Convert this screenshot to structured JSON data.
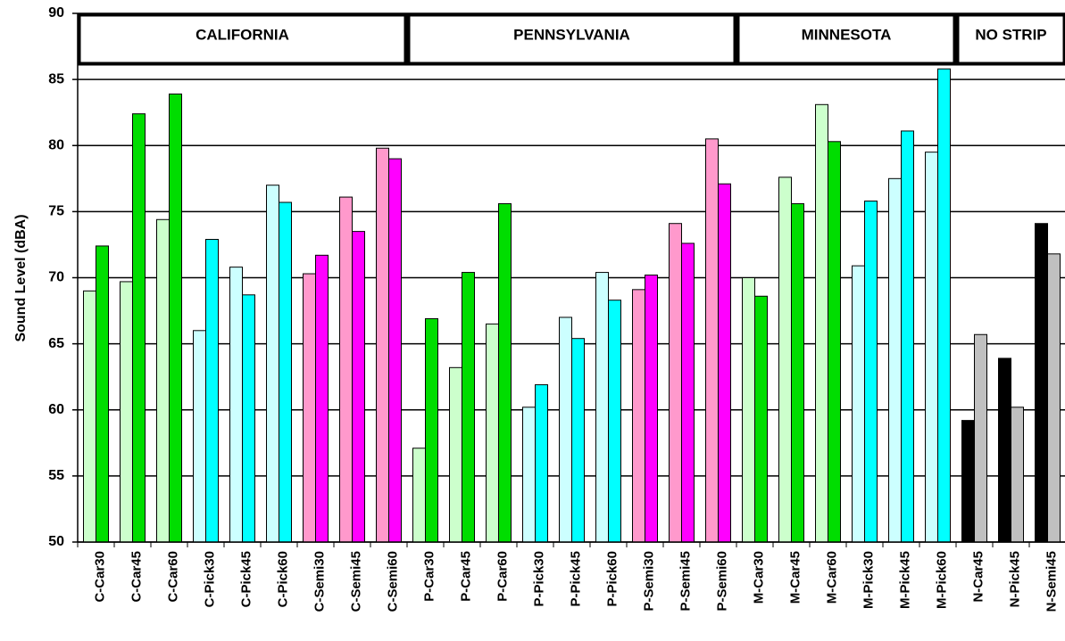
{
  "chart_data": {
    "type": "bar",
    "y_label": "Sound Level (dBA)",
    "regions": [
      "CALIFORNIA",
      "PENNSYLVANIA",
      "MINNESOTA",
      "NO STRIP"
    ],
    "categories": [
      "C-Car30",
      "C-Car45",
      "C-Car60",
      "C-Pick30",
      "C-Pick45",
      "C-Pick60",
      "C-Semi30",
      "C-Semi45",
      "C-Semi60",
      "P-Car30",
      "P-Car45",
      "P-Car60",
      "P-Pick30",
      "P-Pick45",
      "P-Pick60",
      "P-Semi30",
      "P-Semi45",
      "P-Semi60",
      "M-Car30",
      "M-Car45",
      "M-Car60",
      "M-Pick30",
      "M-Pick45",
      "M-Pick60",
      "N-Car45",
      "N-Pick45",
      "N-Semi45"
    ],
    "series": [
      {
        "colors": [
          "#ccffcc",
          "#ccffcc",
          "#ccffcc",
          "#ccffff",
          "#ccffff",
          "#ccffff",
          "#ff99cc",
          "#ff99cc",
          "#ff99cc",
          "#ccffcc",
          "#ccffcc",
          "#ccffcc",
          "#ccffff",
          "#ccffff",
          "#ccffff",
          "#ff99cc",
          "#ff99cc",
          "#ff99cc",
          "#ccffcc",
          "#ccffcc",
          "#ccffcc",
          "#ccffff",
          "#ccffff",
          "#ccffff",
          "#000000",
          "#000000",
          "#000000"
        ],
        "values": [
          69.0,
          69.7,
          74.4,
          66.0,
          70.8,
          77.0,
          70.3,
          76.1,
          79.8,
          57.1,
          63.2,
          66.5,
          60.2,
          67.0,
          70.4,
          69.1,
          74.1,
          80.5,
          70.0,
          77.6,
          83.1,
          70.9,
          77.5,
          79.5,
          59.2,
          63.9,
          74.1
        ]
      },
      {
        "colors": [
          "#00dd00",
          "#00dd00",
          "#00dd00",
          "#00ffff",
          "#00ffff",
          "#00ffff",
          "#ff00ff",
          "#ff00ff",
          "#ff00ff",
          "#00dd00",
          "#00dd00",
          "#00dd00",
          "#00ffff",
          "#00ffff",
          "#00ffff",
          "#ff00ff",
          "#ff00ff",
          "#ff00ff",
          "#00dd00",
          "#00dd00",
          "#00dd00",
          "#00ffff",
          "#00ffff",
          "#00ffff",
          "#c0c0c0",
          "#c0c0c0",
          "#c0c0c0"
        ],
        "values": [
          72.4,
          82.4,
          83.9,
          72.9,
          68.7,
          75.7,
          71.7,
          73.5,
          79.0,
          66.9,
          70.4,
          75.6,
          61.9,
          65.4,
          68.3,
          70.2,
          72.6,
          77.1,
          68.6,
          75.6,
          80.3,
          75.8,
          81.1,
          85.8,
          65.7,
          60.2,
          71.8
        ]
      }
    ],
    "ylim": [
      50,
      90
    ],
    "yticks": [
      50,
      55,
      60,
      65,
      70,
      75,
      80,
      85,
      90
    ],
    "grid": true
  }
}
